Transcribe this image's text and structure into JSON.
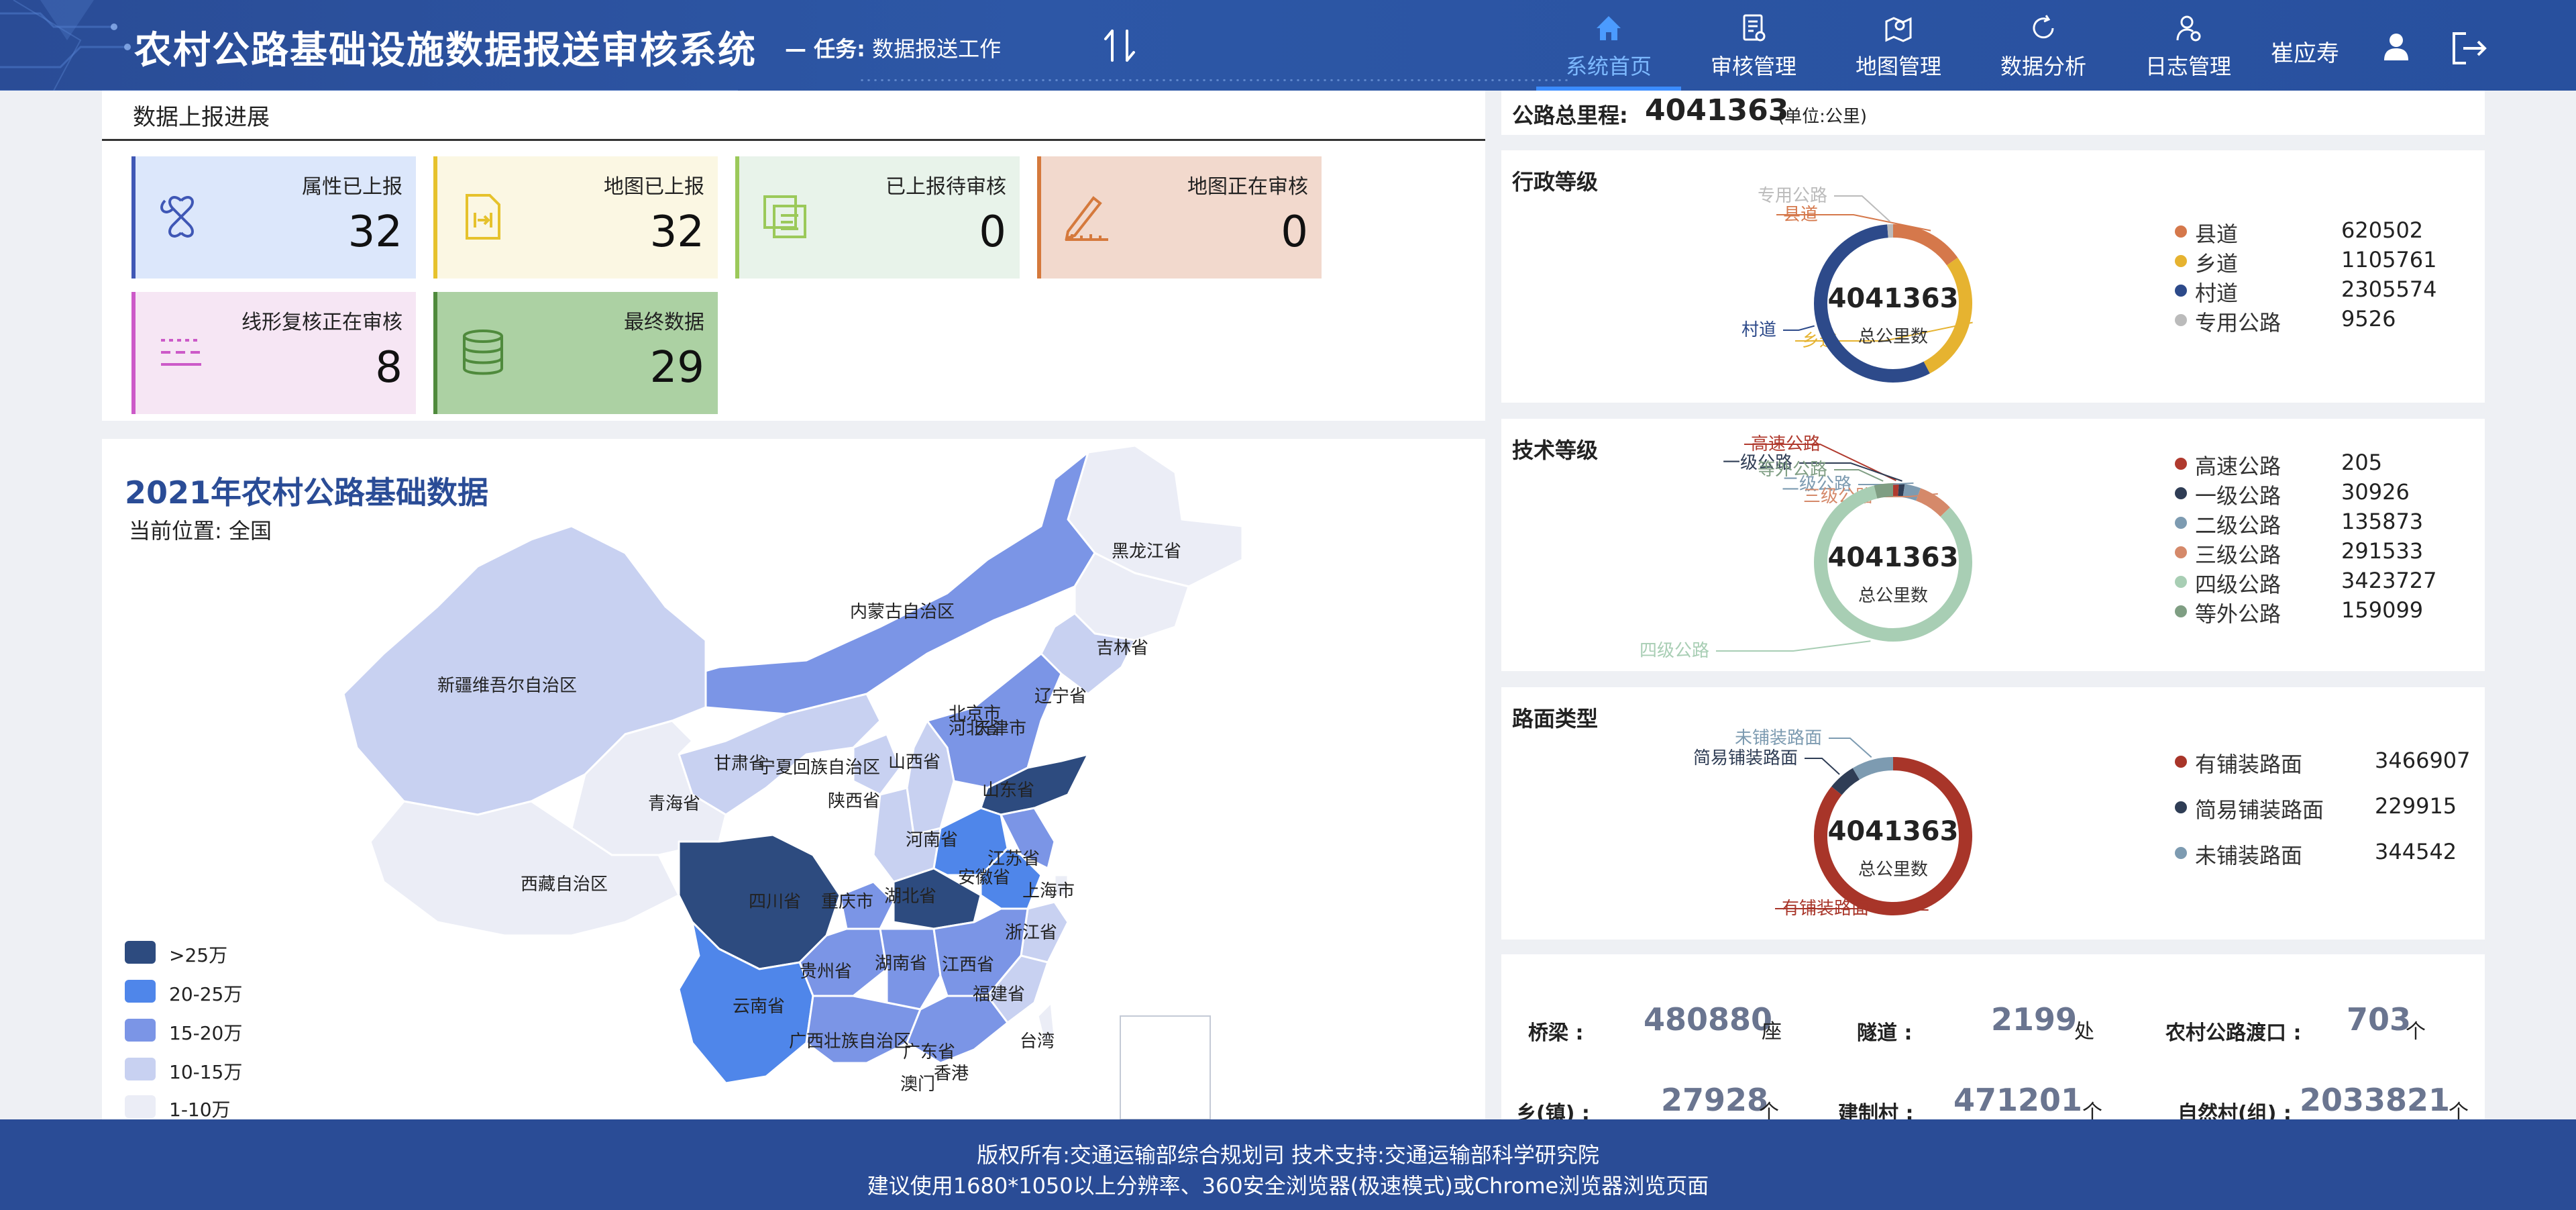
{
  "header": {
    "app_title": "农村公路基础设施数据报送审核系统",
    "task_label": "— 任务:",
    "task_value": "数据报送工作",
    "nav": [
      {
        "label": "系统首页",
        "icon": "home-icon",
        "active": true
      },
      {
        "label": "审核管理",
        "icon": "document-icon",
        "active": false
      },
      {
        "label": "地图管理",
        "icon": "map-pin-icon",
        "active": false
      },
      {
        "label": "数据分析",
        "icon": "refresh-icon",
        "active": false
      },
      {
        "label": "日志管理",
        "icon": "user-gear-icon",
        "active": false
      }
    ],
    "user_name": "崔应寿"
  },
  "progress": {
    "title": "数据上报进展",
    "cards": [
      {
        "label": "属性已上报",
        "value": "32",
        "icon": "puzzle-icon",
        "color": "#3f57b5",
        "bg": "#dce7fb"
      },
      {
        "label": "地图已上报",
        "value": "32",
        "icon": "file-transfer-icon",
        "color": "#e6c22c",
        "bg": "#fbf7e3"
      },
      {
        "label": "已上报待审核",
        "value": "0",
        "icon": "copy-edit-icon",
        "color": "#9bc95a",
        "bg": "#e8f3ea"
      },
      {
        "label": "地图正在审核",
        "value": "0",
        "icon": "pen-ruler-icon",
        "color": "#d5793c",
        "bg": "#f2d9cd"
      },
      {
        "label": "线形复核正在审核",
        "value": "8",
        "icon": "dashed-lines-icon",
        "color": "#cc5ac8",
        "bg": "#f6e6f4"
      },
      {
        "label": "最终数据",
        "value": "29",
        "icon": "database-icon",
        "color": "#4f8a3c",
        "bg": "#acd1a3"
      }
    ]
  },
  "map": {
    "title": "2021年农村公路基础数据",
    "location": "当前位置: 全国",
    "legend": [
      {
        "label": ">25万",
        "color": "#2d4b7f"
      },
      {
        "label": "20-25万",
        "color": "#4f86ea"
      },
      {
        "label": "15-20万",
        "color": "#7b95e6"
      },
      {
        "label": "10-15万",
        "color": "#c8d1f1"
      },
      {
        "label": "1-10万",
        "color": "#ebedf6"
      }
    ],
    "provinces": [
      {
        "name": "黑龙江省",
        "level": 4
      },
      {
        "name": "内蒙古自治区",
        "level": 2
      },
      {
        "name": "吉林省",
        "level": 4
      },
      {
        "name": "辽宁省",
        "level": 3
      },
      {
        "name": "新疆维吾尔自治区",
        "level": 3
      },
      {
        "name": "北京市",
        "level": 4
      },
      {
        "name": "天津市",
        "level": 4
      },
      {
        "name": "河北省",
        "level": 2
      },
      {
        "name": "甘肃省",
        "level": 3
      },
      {
        "name": "宁夏回族自治区",
        "level": 3
      },
      {
        "name": "山西省",
        "level": 3
      },
      {
        "name": "山东省",
        "level": 0
      },
      {
        "name": "青海省",
        "level": 4
      },
      {
        "name": "陕西省",
        "level": 3
      },
      {
        "name": "河南省",
        "level": 1
      },
      {
        "name": "江苏省",
        "level": 2
      },
      {
        "name": "安徽省",
        "level": 1
      },
      {
        "name": "西藏自治区",
        "level": 4
      },
      {
        "name": "四川省",
        "level": 0
      },
      {
        "name": "重庆市",
        "level": 2
      },
      {
        "name": "湖北省",
        "level": 0
      },
      {
        "name": "上海市",
        "level": 4
      },
      {
        "name": "浙江省",
        "level": 3
      },
      {
        "name": "贵州省",
        "level": 2
      },
      {
        "name": "湖南省",
        "level": 2
      },
      {
        "name": "江西省",
        "level": 2
      },
      {
        "name": "云南省",
        "level": 1
      },
      {
        "name": "福建省",
        "level": 3
      },
      {
        "name": "广西壮族自治区",
        "level": 2
      },
      {
        "name": "广东省",
        "level": 2
      },
      {
        "name": "台湾",
        "level": 4
      },
      {
        "name": "澳门",
        "level": 4
      },
      {
        "name": "香港",
        "level": 4
      }
    ]
  },
  "total": {
    "label": "公路总里程:",
    "value": "4041363",
    "unit": "(单位:公里)"
  },
  "donuts": [
    {
      "title": "行政等级",
      "center_value": "4041363",
      "center_label": "总公里数",
      "items": [
        {
          "name": "县道",
          "value": 620502,
          "color": "#d5784b"
        },
        {
          "name": "乡道",
          "value": 1105761,
          "color": "#e6b330"
        },
        {
          "name": "村道",
          "value": 2305574,
          "color": "#2d4a8a"
        },
        {
          "name": "专用公路",
          "value": 9526,
          "color": "#bbbbbb"
        }
      ]
    },
    {
      "title": "技术等级",
      "center_value": "4041363",
      "center_label": "总公里数",
      "items": [
        {
          "name": "高速公路",
          "value": 205,
          "color": "#b03a2e"
        },
        {
          "name": "一级公路",
          "value": 30926,
          "color": "#2f3d55"
        },
        {
          "name": "二级公路",
          "value": 135873,
          "color": "#7d9bb1"
        },
        {
          "name": "三级公路",
          "value": 291533,
          "color": "#d5896a"
        },
        {
          "name": "四级公路",
          "value": 3423727,
          "color": "#a8ceb4"
        },
        {
          "name": "等外公路",
          "value": 159099,
          "color": "#7f9e83"
        }
      ]
    },
    {
      "title": "路面类型",
      "center_value": "4041363",
      "center_label": "总公里数",
      "items": [
        {
          "name": "有铺装路面",
          "value": 3466907,
          "color": "#a83529"
        },
        {
          "name": "简易铺装路面",
          "value": 229915,
          "color": "#2f3d55"
        },
        {
          "name": "未铺装路面",
          "value": 344542,
          "color": "#7d9bb1"
        }
      ]
    }
  ],
  "stats": [
    {
      "label": "桥梁 :",
      "value": "480880",
      "unit": "座"
    },
    {
      "label": "隧道 :",
      "value": "2199",
      "unit": "处"
    },
    {
      "label": "农村公路渡口 :",
      "value": "703",
      "unit": "个"
    },
    {
      "label": "乡(镇) :",
      "value": "27928",
      "unit": "个"
    },
    {
      "label": "建制村 :",
      "value": "471201",
      "unit": "个"
    },
    {
      "label": "自然村(组) :",
      "value": "2033821",
      "unit": "个"
    }
  ],
  "footer": {
    "line1": "版权所有:交通运输部综合规划司    技术支持:交通运输部科学研究院",
    "line2": "建议使用1680*1050以上分辨率、360安全浏览器(极速模式)或Chrome浏览器浏览页面"
  }
}
